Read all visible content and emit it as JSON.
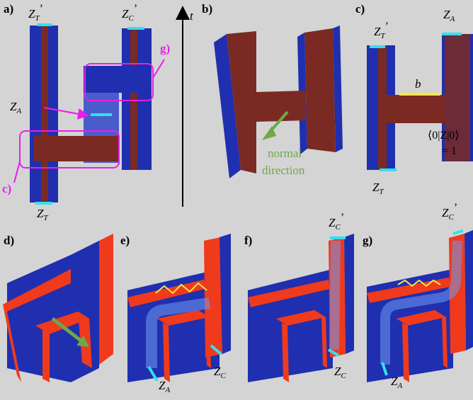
{
  "panels": {
    "a": "a)",
    "b": "b)",
    "c": "c)",
    "d": "d)",
    "e": "e)",
    "f": "f)",
    "g": "g)"
  },
  "callouts": {
    "c": "c)",
    "g": "g)"
  },
  "axis": {
    "label": "t"
  },
  "symbols": {
    "Z": "Z",
    "T": "T",
    "C": "C",
    "A": "A",
    "prime": "’",
    "b": "b"
  },
  "normal": {
    "line1": "normal",
    "line2": "direction"
  },
  "expectation": {
    "line1": "⟨0|Z|0⟩",
    "line2": "= 1"
  },
  "colors": {
    "background": "#d4d4d4",
    "blue": "#1f2fb0",
    "blue_dark": "#141f80",
    "brown": "#7a2a22",
    "red": "#f03a1c",
    "cyan": "#33e0f0",
    "yellow": "#f5e64a",
    "magenta": "#e81ee8",
    "green": "#6fa84a"
  }
}
